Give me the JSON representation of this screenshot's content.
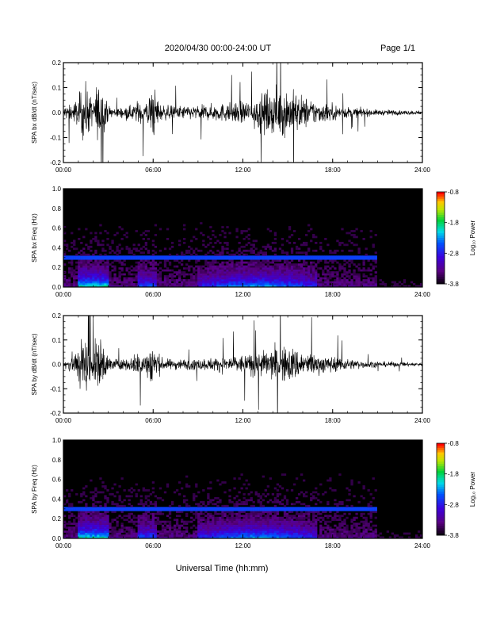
{
  "header": {
    "title": "2020/04/30  00:00-24:00 UT",
    "page": "Page 1/1"
  },
  "xlabel": "Universal Time (hh:mm)",
  "chart_data": [
    {
      "type": "line",
      "ylabel": "SPA bx dB/dt (nT/sec)",
      "xlim": [
        0,
        24
      ],
      "ylim": [
        -0.2,
        0.2
      ],
      "y_ticks": [
        "-0.2",
        "-0.1",
        "0.0",
        "0.1",
        "0.2"
      ],
      "x_ticks": [
        "00:00",
        "06:00",
        "12:00",
        "18:00",
        "24:00"
      ],
      "envelope": {
        "x_hours": [
          0,
          0.5,
          1,
          1.2,
          1.5,
          2,
          2.2,
          2.5,
          3,
          3.5,
          4,
          4.5,
          5,
          5.5,
          6,
          6.5,
          7,
          8,
          9,
          10,
          11,
          12,
          13,
          14,
          15,
          16,
          17,
          18,
          19,
          20,
          21,
          22,
          23,
          24
        ],
        "amplitude": [
          0.05,
          0.06,
          0.1,
          0.2,
          0.2,
          0.08,
          0.2,
          0.2,
          0.05,
          0.04,
          0.04,
          0.05,
          0.09,
          0.07,
          0.2,
          0.06,
          0.05,
          0.05,
          0.05,
          0.06,
          0.07,
          0.08,
          0.12,
          0.16,
          0.18,
          0.12,
          0.08,
          0.06,
          0.04,
          0.03,
          0.02,
          0.02,
          0.015,
          0.015
        ]
      }
    },
    {
      "type": "heatmap",
      "ylabel": "SPA bx Freq (Hz)",
      "xlim": [
        0,
        24
      ],
      "ylim": [
        0.0,
        1.0
      ],
      "y_ticks": [
        "0.0",
        "0.2",
        "0.4",
        "0.6",
        "0.8",
        "1.0"
      ],
      "x_ticks": [
        "00:00",
        "06:00",
        "12:00",
        "18:00",
        "24:00"
      ],
      "colorbar": {
        "label": "Log₁₀ Power",
        "ticks": [
          "-0.8",
          "-1.8",
          "-2.8",
          "-3.8"
        ],
        "range": [
          -3.8,
          -0.8
        ]
      }
    },
    {
      "type": "line",
      "ylabel": "SPA by dB/dt (nT/sec)",
      "xlim": [
        0,
        24
      ],
      "ylim": [
        -0.2,
        0.2
      ],
      "y_ticks": [
        "-0.2",
        "-0.1",
        "0.0",
        "0.1",
        "0.2"
      ],
      "x_ticks": [
        "00:00",
        "06:00",
        "12:00",
        "18:00",
        "24:00"
      ],
      "envelope": {
        "x_hours": [
          0,
          0.5,
          1,
          1.2,
          1.5,
          2,
          2.2,
          2.5,
          3,
          3.5,
          4,
          4.5,
          5,
          5.5,
          6,
          6.5,
          7,
          8,
          9,
          10,
          11,
          12,
          13,
          14,
          15,
          16,
          17,
          18,
          19,
          20,
          21,
          22,
          23,
          24
        ],
        "amplitude": [
          0.04,
          0.06,
          0.15,
          0.2,
          0.2,
          0.1,
          0.2,
          0.2,
          0.06,
          0.04,
          0.04,
          0.05,
          0.1,
          0.08,
          0.2,
          0.05,
          0.04,
          0.04,
          0.04,
          0.05,
          0.06,
          0.07,
          0.09,
          0.12,
          0.14,
          0.1,
          0.07,
          0.06,
          0.04,
          0.03,
          0.02,
          0.02,
          0.015,
          0.015
        ]
      }
    },
    {
      "type": "heatmap",
      "ylabel": "SPA by Freq (Hz)",
      "xlim": [
        0,
        24
      ],
      "ylim": [
        0.0,
        1.0
      ],
      "y_ticks": [
        "0.0",
        "0.2",
        "0.4",
        "0.6",
        "0.8",
        "1.0"
      ],
      "x_ticks": [
        "00:00",
        "06:00",
        "12:00",
        "18:00",
        "24:00"
      ],
      "colorbar": {
        "label": "Log₁₀ Power",
        "ticks": [
          "-0.8",
          "-1.8",
          "-2.8",
          "-3.8"
        ],
        "range": [
          -3.8,
          -0.8
        ]
      }
    }
  ]
}
